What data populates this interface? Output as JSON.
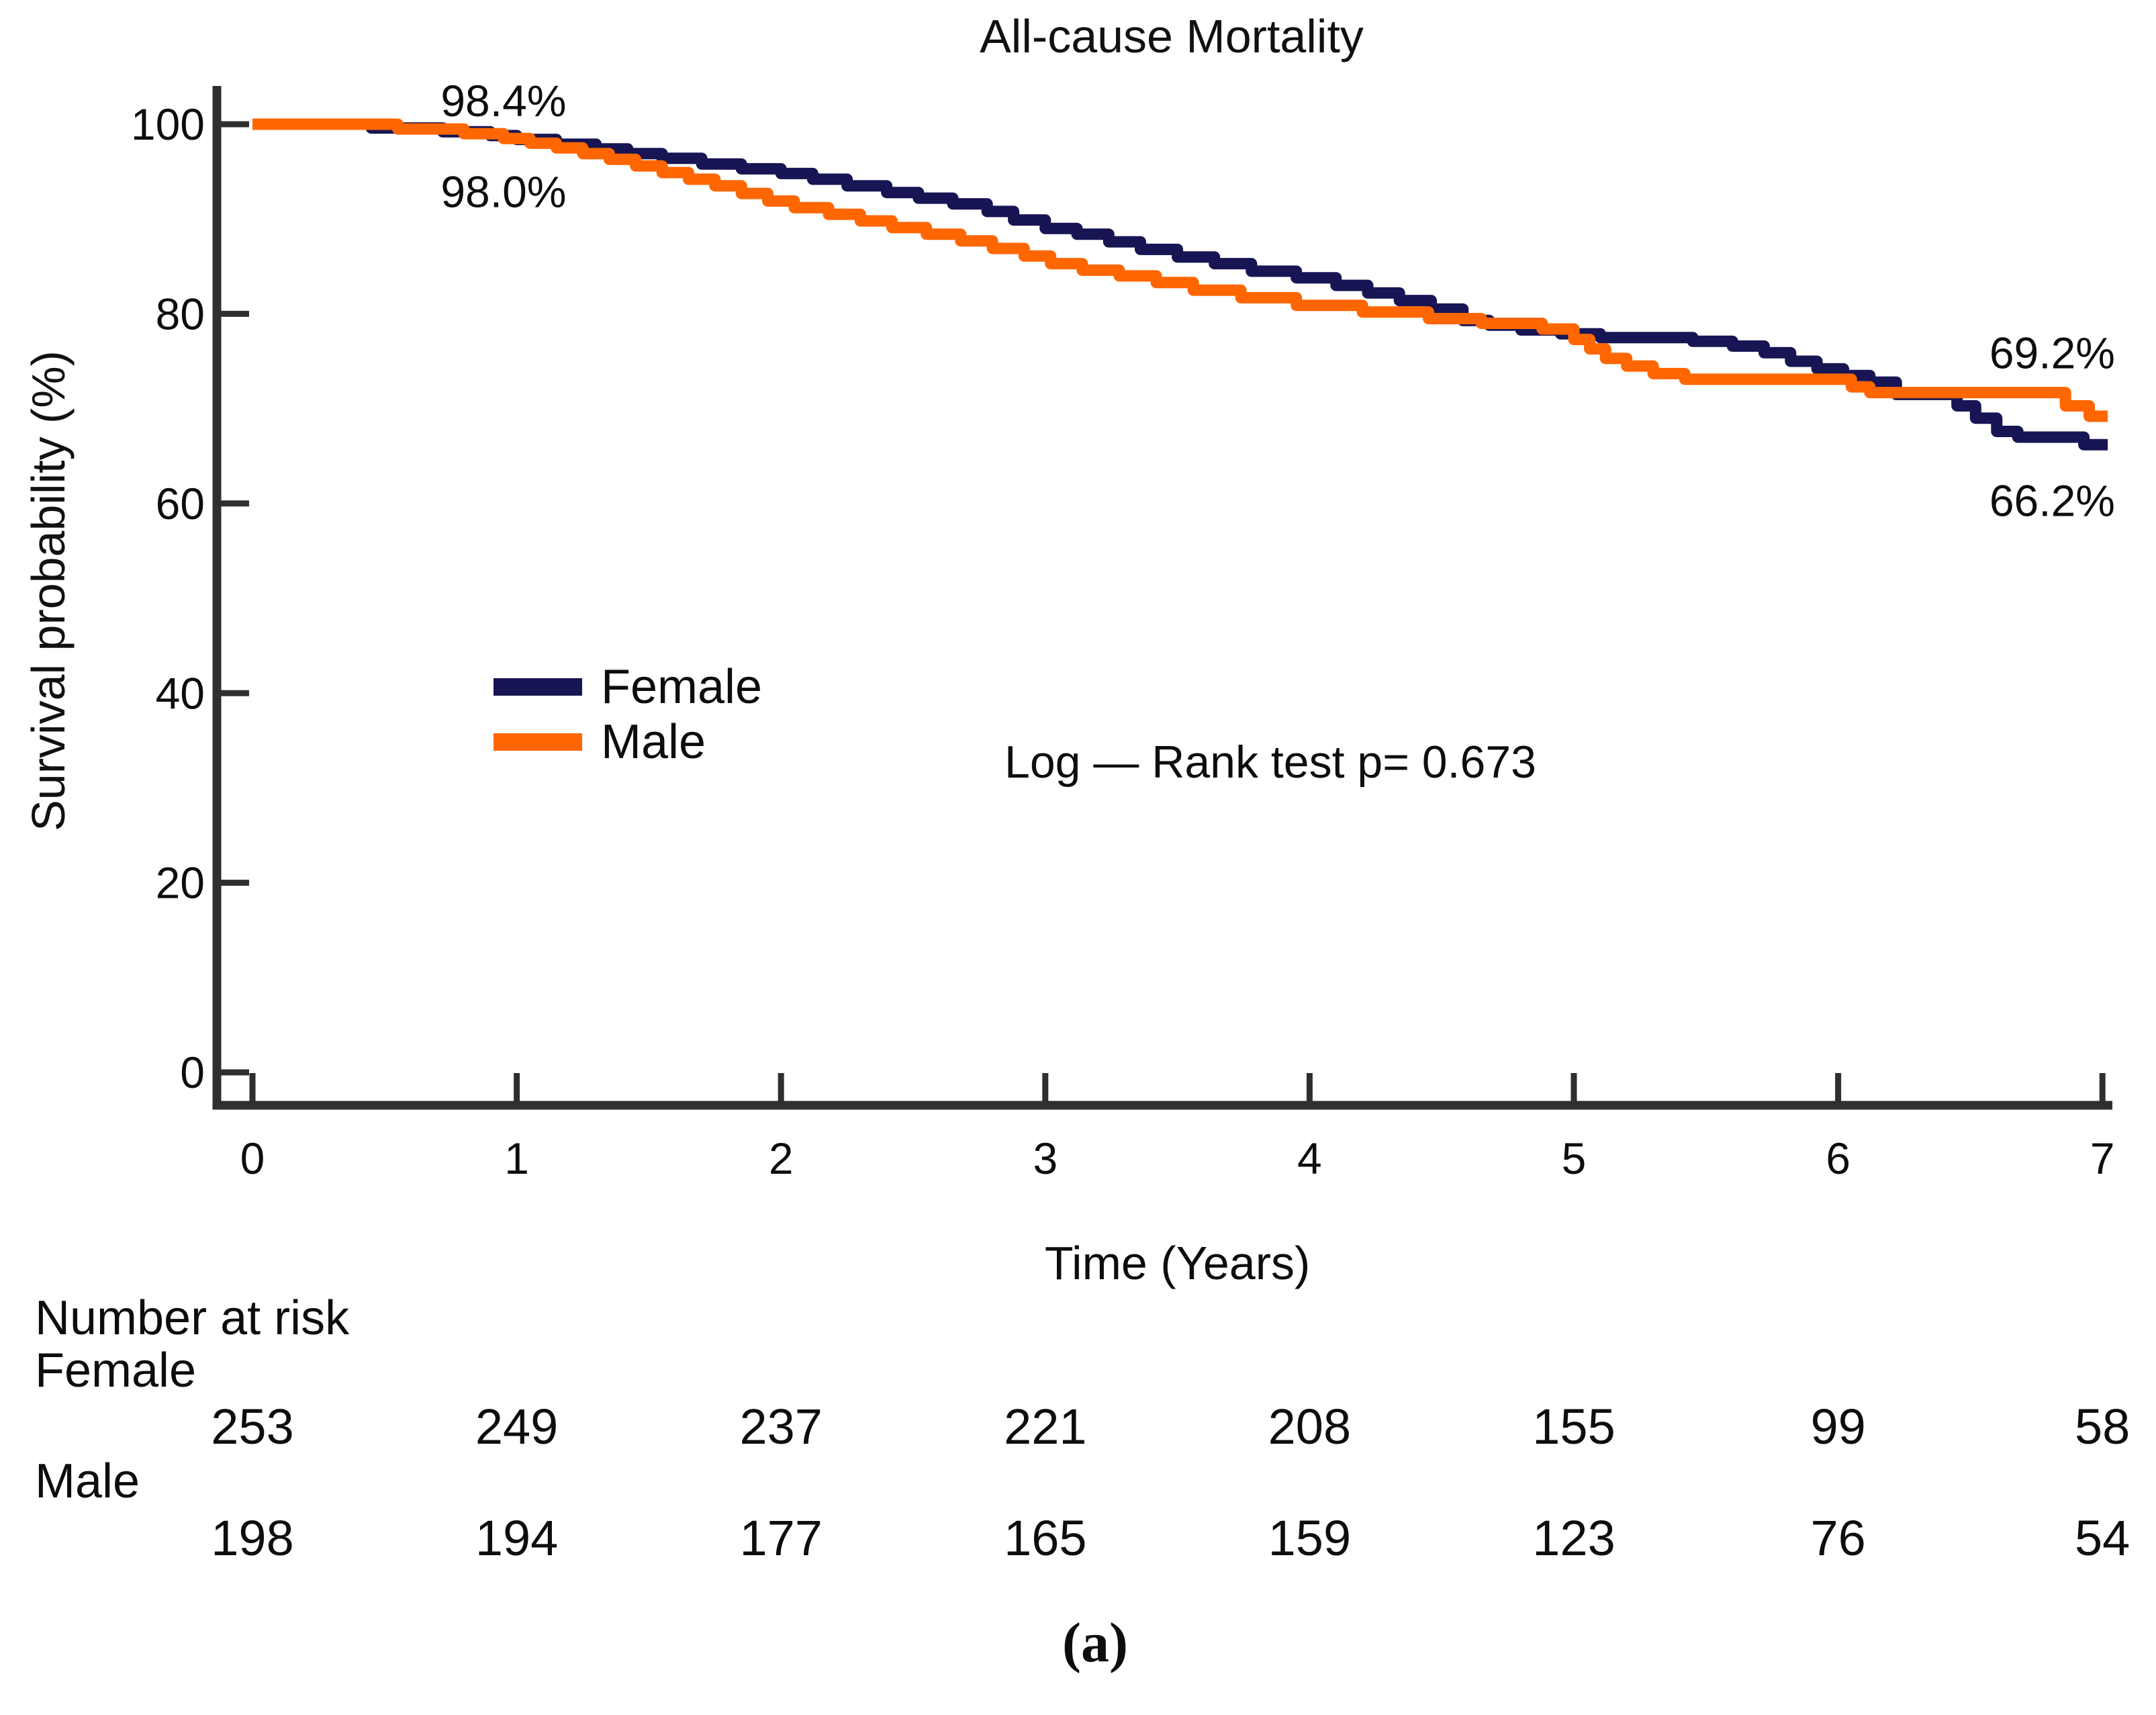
{
  "title": "All-cause Mortality",
  "colors": {
    "female": "#171553",
    "male": "#ff6600",
    "axis": "#2f2f2f",
    "text": "#0d0d0d"
  },
  "chart_data": {
    "type": "line",
    "subtype": "kaplan-meier-step",
    "title": "All-cause Mortality",
    "xlabel": "Time (Years)",
    "ylabel": "Survival probability (%)",
    "xlim": [
      0,
      7.05
    ],
    "ylim": [
      0,
      100
    ],
    "xticks": [
      0,
      1,
      2,
      3,
      4,
      5,
      6,
      7
    ],
    "yticks": [
      100,
      80,
      60,
      40,
      20,
      0
    ],
    "grid": false,
    "legend_position": "inside-left",
    "series": [
      {
        "name": "Female",
        "color": "#171553",
        "points": [
          [
            0,
            100
          ],
          [
            0.45,
            99.6
          ],
          [
            0.72,
            99.2
          ],
          [
            0.9,
            98.8
          ],
          [
            1,
            98.4
          ],
          [
            1.15,
            97.9
          ],
          [
            1.3,
            97.4
          ],
          [
            1.42,
            96.9
          ],
          [
            1.55,
            96.4
          ],
          [
            1.7,
            95.8
          ],
          [
            1.85,
            95.3
          ],
          [
            2,
            94.8
          ],
          [
            2.12,
            94.2
          ],
          [
            2.25,
            93.5
          ],
          [
            2.4,
            92.8
          ],
          [
            2.52,
            92.2
          ],
          [
            2.65,
            91.6
          ],
          [
            2.78,
            90.8
          ],
          [
            2.88,
            89.9
          ],
          [
            3,
            89
          ],
          [
            3.12,
            88.4
          ],
          [
            3.24,
            87.6
          ],
          [
            3.36,
            86.8
          ],
          [
            3.5,
            86
          ],
          [
            3.64,
            85.3
          ],
          [
            3.78,
            84.5
          ],
          [
            3.95,
            83.8
          ],
          [
            4.1,
            83
          ],
          [
            4.22,
            82.2
          ],
          [
            4.34,
            81.4
          ],
          [
            4.46,
            80.5
          ],
          [
            4.58,
            79.3
          ],
          [
            4.68,
            78.8
          ],
          [
            4.8,
            78.3
          ],
          [
            4.95,
            77.9
          ],
          [
            5.1,
            77.5
          ],
          [
            5.45,
            77.1
          ],
          [
            5.6,
            76.6
          ],
          [
            5.72,
            75.9
          ],
          [
            5.82,
            75
          ],
          [
            5.92,
            74.2
          ],
          [
            6.02,
            73.5
          ],
          [
            6.12,
            72.8
          ],
          [
            6.22,
            71.5
          ],
          [
            6.45,
            70.3
          ],
          [
            6.52,
            69
          ],
          [
            6.6,
            67.6
          ],
          [
            6.68,
            67
          ],
          [
            6.93,
            66.2
          ],
          [
            7.02,
            66.2
          ]
        ]
      },
      {
        "name": "Male",
        "color": "#ff6600",
        "points": [
          [
            0,
            100
          ],
          [
            0.55,
            99.5
          ],
          [
            0.8,
            99
          ],
          [
            0.95,
            98.5
          ],
          [
            1.05,
            98
          ],
          [
            1.15,
            97.5
          ],
          [
            1.25,
            96.9
          ],
          [
            1.35,
            96.3
          ],
          [
            1.45,
            95.6
          ],
          [
            1.55,
            94.9
          ],
          [
            1.65,
            94.2
          ],
          [
            1.75,
            93.5
          ],
          [
            1.85,
            92.7
          ],
          [
            1.95,
            91.9
          ],
          [
            2.05,
            91.2
          ],
          [
            2.18,
            90.5
          ],
          [
            2.3,
            89.8
          ],
          [
            2.42,
            89.1
          ],
          [
            2.55,
            88.4
          ],
          [
            2.68,
            87.7
          ],
          [
            2.8,
            86.9
          ],
          [
            2.92,
            86.1
          ],
          [
            3.02,
            85.3
          ],
          [
            3.14,
            84.6
          ],
          [
            3.28,
            84
          ],
          [
            3.42,
            83.3
          ],
          [
            3.56,
            82.5
          ],
          [
            3.74,
            81.7
          ],
          [
            3.95,
            80.9
          ],
          [
            4.2,
            80.2
          ],
          [
            4.45,
            79.5
          ],
          [
            4.65,
            79
          ],
          [
            4.88,
            78.4
          ],
          [
            5,
            77.3
          ],
          [
            5.06,
            76.3
          ],
          [
            5.12,
            75.3
          ],
          [
            5.2,
            74.5
          ],
          [
            5.3,
            73.7
          ],
          [
            5.42,
            73.1
          ],
          [
            6.05,
            72.3
          ],
          [
            6.12,
            71.7
          ],
          [
            6.86,
            70.3
          ],
          [
            6.95,
            69.2
          ],
          [
            7.02,
            69.2
          ]
        ]
      }
    ],
    "annotations": [
      {
        "text": "98.4%",
        "x": 0.95,
        "y": 102.5
      },
      {
        "text": "98.0%",
        "x": 0.95,
        "y": 92.9
      },
      {
        "text": "69.2%",
        "x": 6.81,
        "y": 75.9
      },
      {
        "text": "66.2%",
        "x": 6.81,
        "y": 60.3
      }
    ]
  },
  "legend": {
    "items": [
      {
        "label": "Female",
        "color": "#171553"
      },
      {
        "label": "Male",
        "color": "#ff6600"
      }
    ]
  },
  "stats_text": "Log — Rank test p= 0.673",
  "risk_table": {
    "header": "Number at risk",
    "times": [
      0,
      1,
      2,
      3,
      4,
      5,
      6,
      7
    ],
    "rows": [
      {
        "label": "Female",
        "counts": [
          253,
          249,
          237,
          221,
          208,
          155,
          99,
          58
        ]
      },
      {
        "label": "Male",
        "counts": [
          198,
          194,
          177,
          165,
          159,
          123,
          76,
          54
        ]
      }
    ]
  },
  "caption": "(a)"
}
